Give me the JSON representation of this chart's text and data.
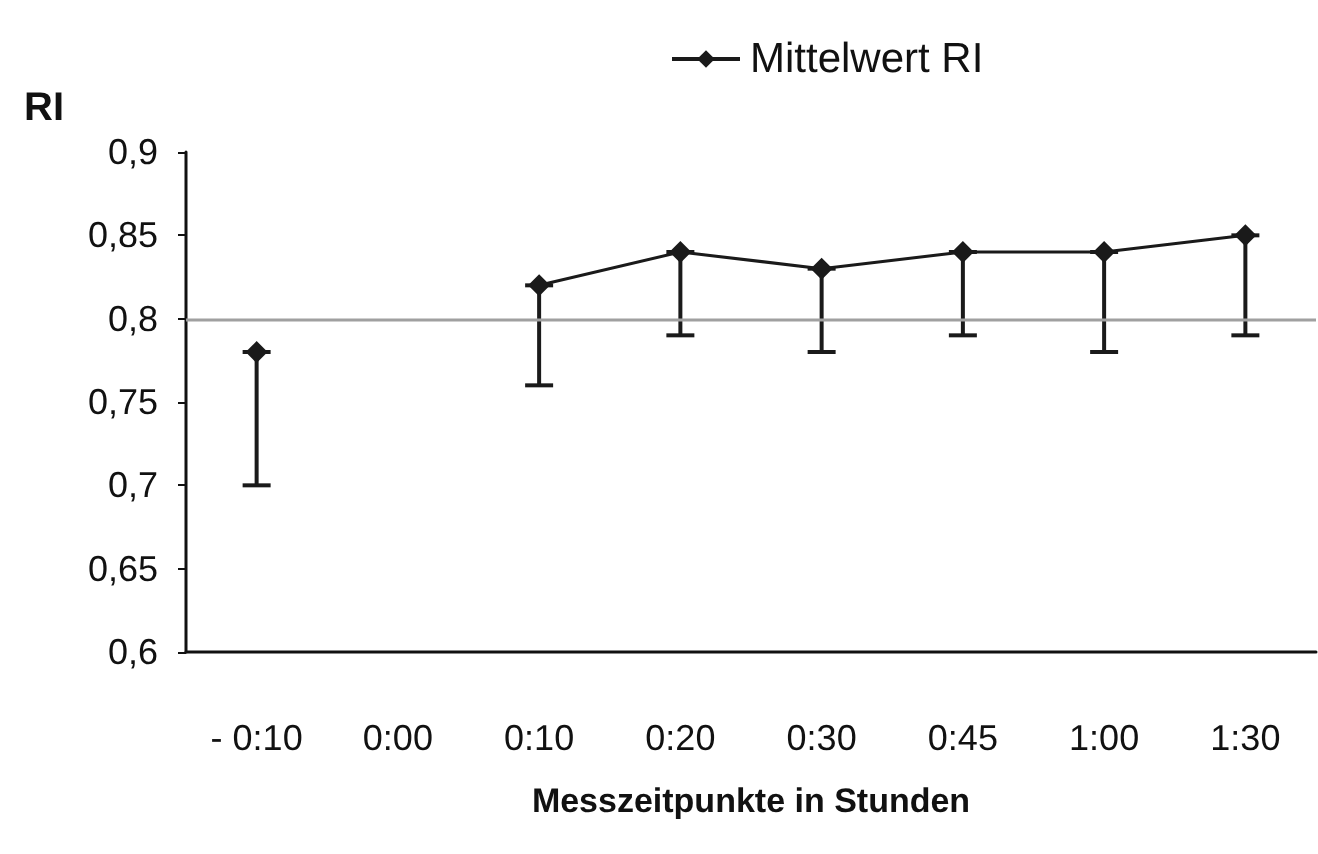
{
  "chart_data": {
    "type": "line",
    "ylabel": "RI",
    "xlabel": "Messzeitpunkte in Stunden",
    "categories": [
      "- 0:10",
      "0:00",
      "0:10",
      "0:20",
      "0:30",
      "0:45",
      "1:00",
      "1:30"
    ],
    "series": [
      {
        "name": "Mittelwert RI",
        "color": "#1a1a1a",
        "values": [
          0.78,
          null,
          0.82,
          0.84,
          0.83,
          0.84,
          0.84,
          0.85
        ],
        "errors": [
          [
            0.7,
            0.78
          ],
          null,
          [
            0.76,
            0.82
          ],
          [
            0.79,
            0.84
          ],
          [
            0.78,
            0.83
          ],
          [
            0.79,
            0.84
          ],
          [
            0.78,
            0.84
          ],
          [
            0.79,
            0.85
          ]
        ]
      }
    ],
    "ylim": [
      0.6,
      0.9
    ],
    "yticks": [
      {
        "value": 0.6,
        "label": "0,6"
      },
      {
        "value": 0.65,
        "label": "0,65"
      },
      {
        "value": 0.7,
        "label": "0,7"
      },
      {
        "value": 0.75,
        "label": "0,75"
      },
      {
        "value": 0.8,
        "label": "0,8"
      },
      {
        "value": 0.85,
        "label": "0,85"
      },
      {
        "value": 0.9,
        "label": "0,9"
      }
    ],
    "ref_lines": [
      {
        "axis": "y",
        "value": 0.8,
        "color": "#a0a0a0"
      }
    ],
    "grid": false,
    "legend": "top",
    "marker": "diamond",
    "line_style": "solid"
  }
}
